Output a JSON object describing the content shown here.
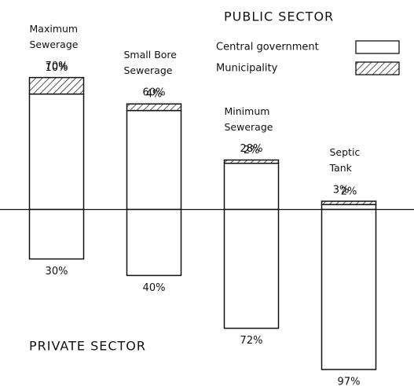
{
  "chart_data": {
    "type": "bar",
    "legend_title": "PUBLIC SECTOR",
    "categories": [
      "Maximum Sewerage",
      "Small Bore Sewerage",
      "Minimum Sewerage",
      "Septic Tank"
    ],
    "series": [
      {
        "name": "Central government",
        "color": "#ffffff",
        "values": [
          70,
          60,
          28,
          3
        ],
        "value_labels": [
          "70%",
          "60%",
          "28%",
          "3%"
        ]
      },
      {
        "name": "Municipality",
        "color": "hatch",
        "values": [
          10,
          4,
          2,
          2
        ],
        "value_labels": [
          "10%",
          "4%",
          "2%",
          "2%"
        ]
      },
      {
        "name": "PRIVATE SECTOR",
        "color": "#ffffff",
        "direction": "down",
        "values": [
          30,
          40,
          72,
          97
        ],
        "value_labels": [
          "30%",
          "40%",
          "72%",
          "97%"
        ]
      }
    ],
    "ylim": [
      -107,
      127
    ]
  }
}
